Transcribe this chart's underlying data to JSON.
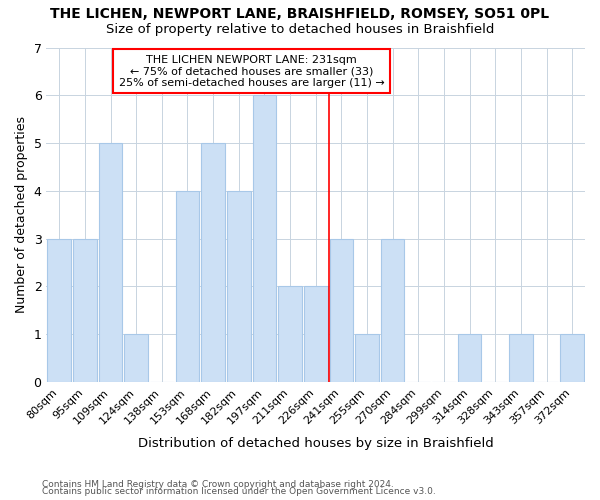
{
  "title": "THE LICHEN, NEWPORT LANE, BRAISHFIELD, ROMSEY, SO51 0PL",
  "subtitle": "Size of property relative to detached houses in Braishfield",
  "xlabel": "Distribution of detached houses by size in Braishfield",
  "ylabel": "Number of detached properties",
  "footer1": "Contains HM Land Registry data © Crown copyright and database right 2024.",
  "footer2": "Contains public sector information licensed under the Open Government Licence v3.0.",
  "categories": [
    "80sqm",
    "95sqm",
    "109sqm",
    "124sqm",
    "138sqm",
    "153sqm",
    "168sqm",
    "182sqm",
    "197sqm",
    "211sqm",
    "226sqm",
    "241sqm",
    "255sqm",
    "270sqm",
    "284sqm",
    "299sqm",
    "314sqm",
    "328sqm",
    "343sqm",
    "357sqm",
    "372sqm"
  ],
  "values": [
    3,
    3,
    5,
    1,
    0,
    4,
    5,
    4,
    6,
    2,
    2,
    3,
    1,
    3,
    0,
    0,
    1,
    0,
    1,
    0,
    1
  ],
  "bar_color": "#cce0f5",
  "bar_edgecolor": "#a8c8e8",
  "bar_linewidth": 0.8,
  "ylim": [
    0,
    7
  ],
  "yticks": [
    0,
    1,
    2,
    3,
    4,
    5,
    6,
    7
  ],
  "grid_color": "#c8d4e0",
  "annotation_text": "THE LICHEN NEWPORT LANE: 231sqm\n← 75% of detached houses are smaller (33)\n25% of semi-detached houses are larger (11) →",
  "annotation_box_edgecolor": "red",
  "vline_x": 10.5,
  "vline_color": "red",
  "vline_linewidth": 1.2,
  "background_color": "#ffffff",
  "plot_background_color": "#ffffff",
  "title_fontsize": 10,
  "subtitle_fontsize": 9.5
}
